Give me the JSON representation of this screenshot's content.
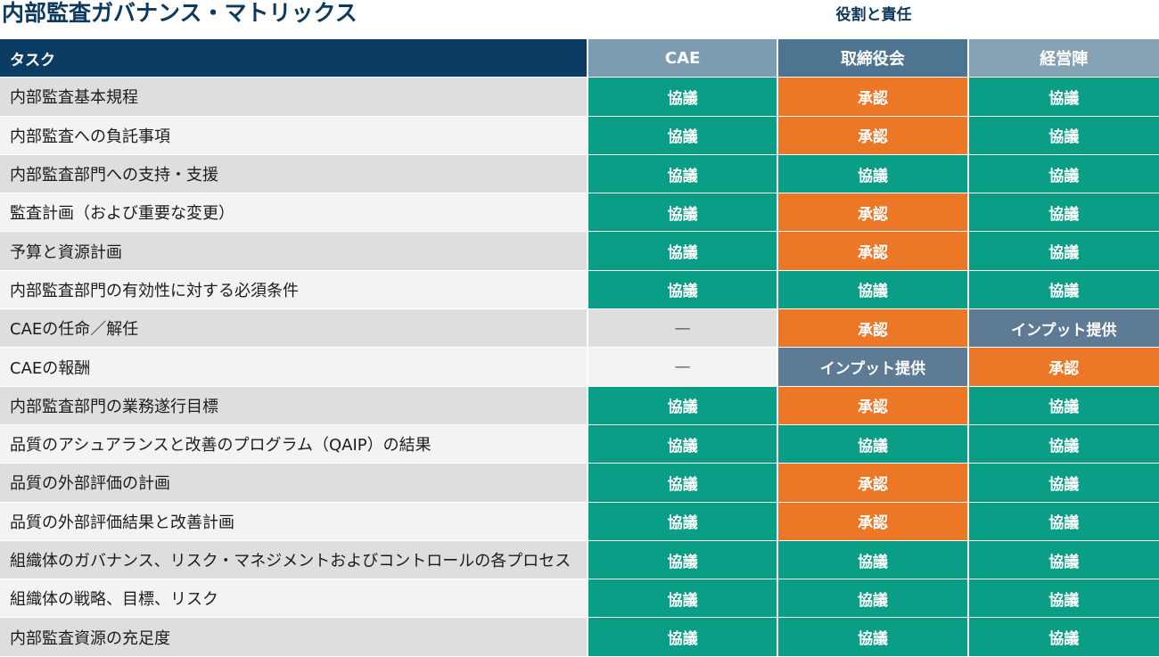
{
  "title": "内部監査ガバナンス・マトリックス",
  "roles_caption": "役割と責任",
  "header": {
    "task": "タスク",
    "roles": [
      "CAE",
      "取締役会",
      "経営陣"
    ]
  },
  "legend_colors": {
    "協議": "#0b9e86",
    "承認": "#ec7726",
    "インプット提供": "#5e7b96"
  },
  "rows": [
    {
      "task": "内部監査基本規程",
      "cae": "協議",
      "board": "承認",
      "mgmt": "協議"
    },
    {
      "task": "内部監査への負託事項",
      "cae": "協議",
      "board": "承認",
      "mgmt": "協議"
    },
    {
      "task": "内部監査部門への支持・支援",
      "cae": "協議",
      "board": "協議",
      "mgmt": "協議"
    },
    {
      "task": "監査計画（および重要な変更）",
      "cae": "協議",
      "board": "承認",
      "mgmt": "協議"
    },
    {
      "task": "予算と資源計画",
      "cae": "協議",
      "board": "承認",
      "mgmt": "協議"
    },
    {
      "task": "内部監査部門の有効性に対する必須条件",
      "cae": "協議",
      "board": "協議",
      "mgmt": "協議"
    },
    {
      "task": "CAEの任命／解任",
      "cae": "—",
      "board": "承認",
      "mgmt": "インプット提供"
    },
    {
      "task": "CAEの報酬",
      "cae": "—",
      "board": "インプット提供",
      "mgmt": "承認"
    },
    {
      "task": "内部監査部門の業務遂行目標",
      "cae": "協議",
      "board": "承認",
      "mgmt": "協議"
    },
    {
      "task": "品質のアシュアランスと改善のプログラム（QAIP）の結果",
      "cae": "協議",
      "board": "協議",
      "mgmt": "協議"
    },
    {
      "task": "品質の外部評価の計画",
      "cae": "協議",
      "board": "承認",
      "mgmt": "協議"
    },
    {
      "task": "品質の外部評価結果と改善計画",
      "cae": "協議",
      "board": "承認",
      "mgmt": "協議"
    },
    {
      "task": "組織体のガバナンス、リスク・マネジメントおよびコントロールの各プロセス",
      "cae": "協議",
      "board": "協議",
      "mgmt": "協議"
    },
    {
      "task": "組織体の戦略、目標、リスク",
      "cae": "協議",
      "board": "協議",
      "mgmt": "協議"
    },
    {
      "task": "内部監査資源の充足度",
      "cae": "協議",
      "board": "協議",
      "mgmt": "協議"
    }
  ]
}
